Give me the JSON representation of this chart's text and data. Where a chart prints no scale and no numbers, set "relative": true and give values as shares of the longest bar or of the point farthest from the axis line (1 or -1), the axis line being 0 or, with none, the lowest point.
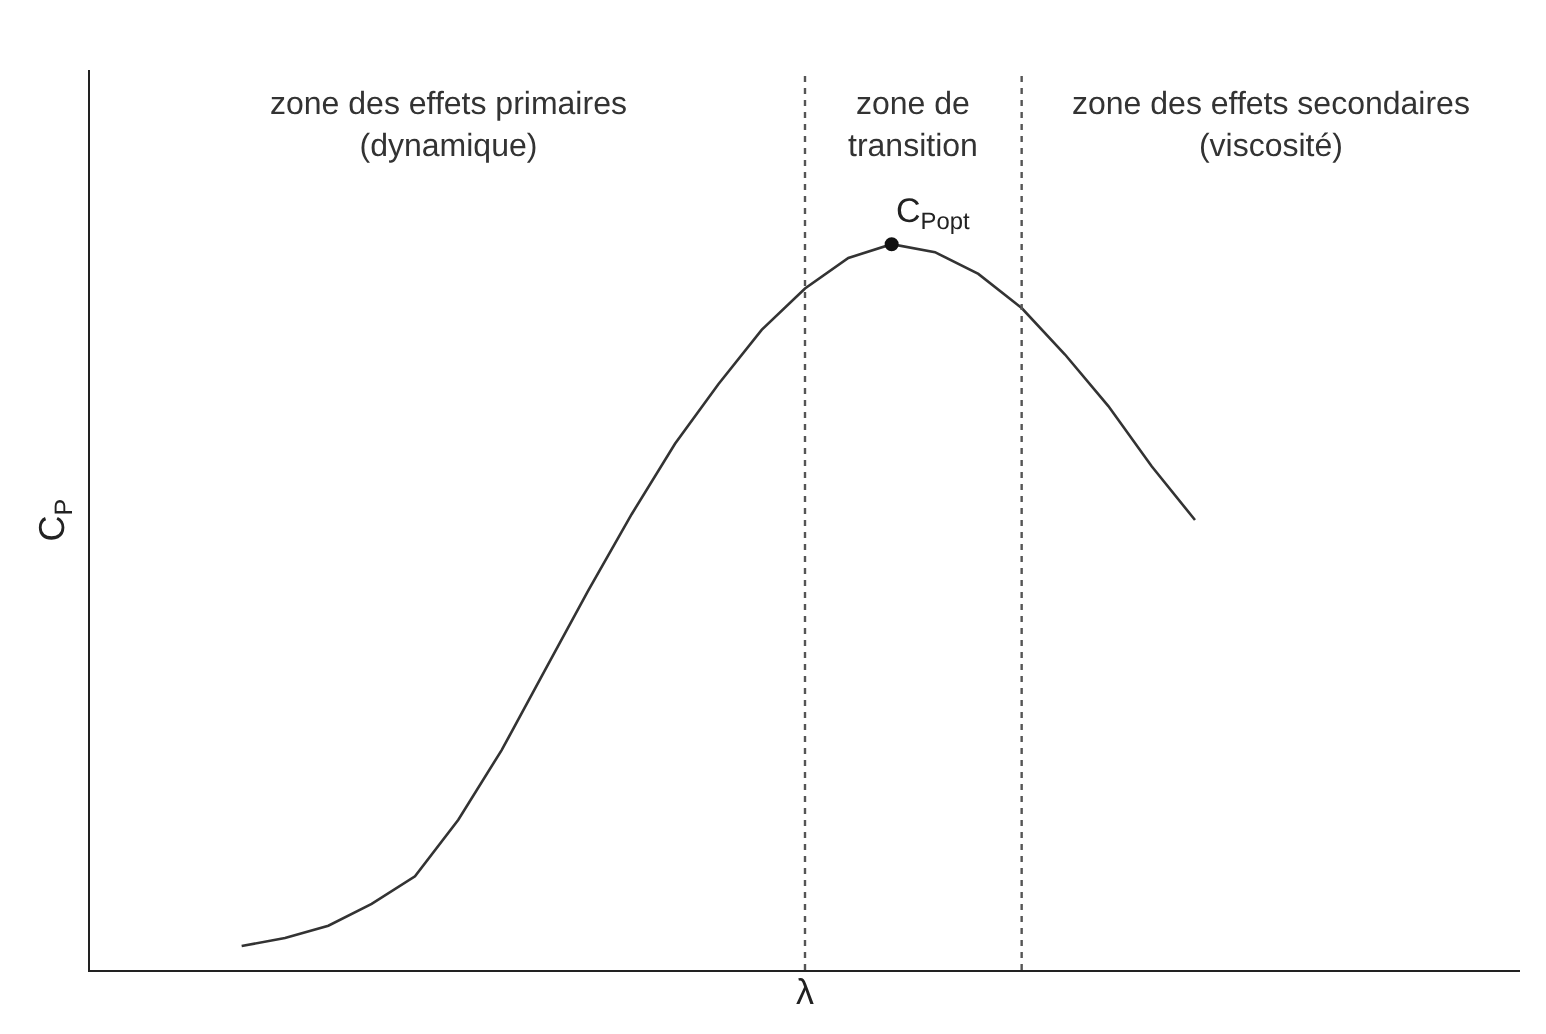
{
  "chart_data": {
    "type": "line",
    "relative": true,
    "xlabel": "λ",
    "ylabel": "C$_{P}$",
    "categories": [
      null,
      null,
      null,
      null,
      null,
      null,
      null,
      null,
      null,
      null,
      null,
      null,
      null,
      null,
      null,
      null,
      null,
      null,
      null,
      null,
      null,
      null,
      null,
      null,
      null,
      null,
      null,
      null,
      null,
      null,
      null,
      null,
      null
    ],
    "series": [
      {
        "color": "#333333",
        "values": [
          null,
          null,
          null,
          0.033,
          0.044,
          0.061,
          0.091,
          0.129,
          0.207,
          0.303,
          0.413,
          0.523,
          0.628,
          0.725,
          0.807,
          0.882,
          0.939,
          0.981,
          1.0,
          0.989,
          0.959,
          0.912,
          0.848,
          0.777,
          0.694,
          0.62,
          null,
          null,
          null,
          null,
          null,
          null,
          null
        ]
      }
    ],
    "annotations": [
      "zone des effets primaires\n(dynamique)",
      "zone de\ntransition",
      "zone des effets secondaires\n(viscosité)",
      "C$_{Popt}$"
    ],
    "tick_labels": false
  }
}
